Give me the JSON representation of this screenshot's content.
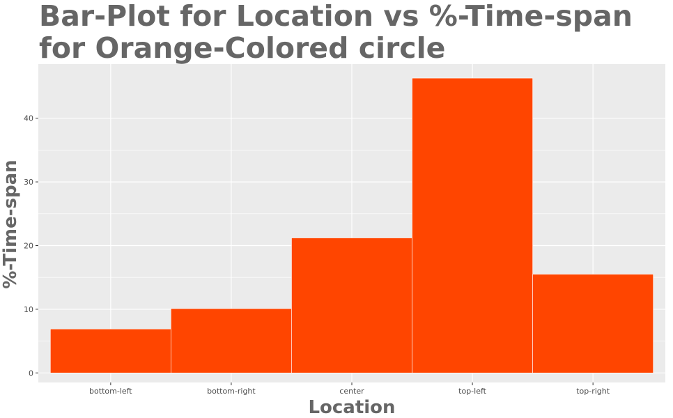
{
  "chart_data": {
    "type": "bar",
    "title_lines": [
      "Bar-Plot for Location vs %-Time-span",
      "for Orange-Colored circle"
    ],
    "xlabel": "Location",
    "ylabel": "%-Time-span",
    "categories": [
      "bottom-left",
      "bottom-right",
      "center",
      "top-left",
      "top-right"
    ],
    "values": [
      6.9,
      10.1,
      21.2,
      46.3,
      15.5
    ],
    "bar_color": "#FF4500",
    "panel_background": "#EBEBEB",
    "grid_color": "#FFFFFF",
    "text_color": "#666666",
    "tick_text_color": "#4D4D4D",
    "ylim": [
      -1.5,
      48.5
    ],
    "y_ticks": [
      0,
      10,
      20,
      30,
      40
    ],
    "grid": true,
    "legend": "none"
  }
}
